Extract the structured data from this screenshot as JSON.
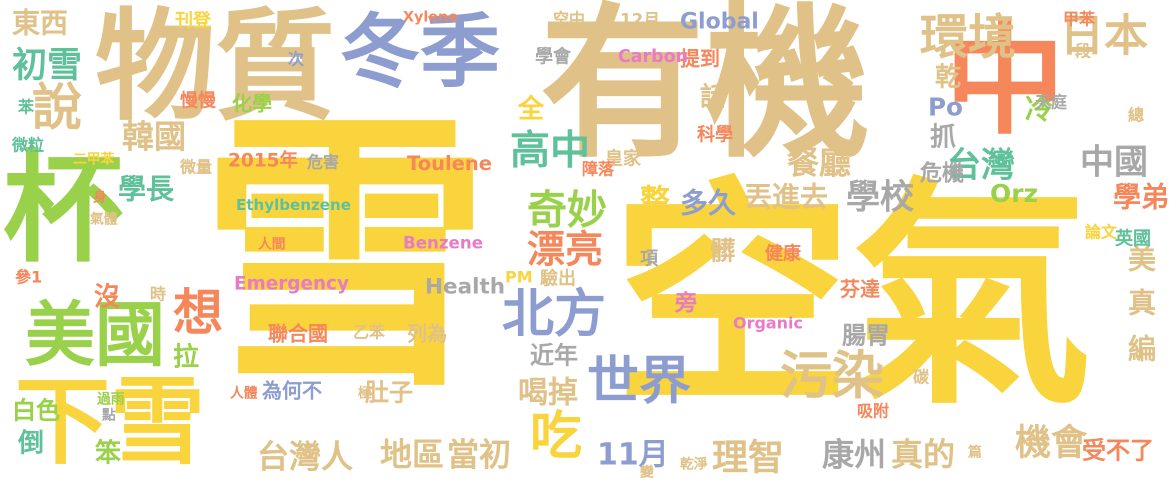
{
  "palette": {
    "gray": "#a8a8a8",
    "yellow": "#f9d43c",
    "tan": "#e0c187",
    "green": "#9ad14a",
    "blue": "#8e9dd0",
    "orange": "#f5875b",
    "teal": "#5fc19a",
    "pink": "#e77bc6"
  },
  "words": [
    {
      "text": "雪",
      "color": "yellow"
    },
    {
      "text": "空氣",
      "color": "yellow"
    },
    {
      "text": "有機",
      "color": "tan"
    },
    {
      "text": "中",
      "color": "orange"
    },
    {
      "text": "物質",
      "color": "tan"
    },
    {
      "text": "冬季",
      "color": "blue"
    },
    {
      "text": "杯",
      "color": "green"
    },
    {
      "text": "下雪",
      "color": "yellow"
    },
    {
      "text": "美國",
      "color": "green"
    },
    {
      "text": "想",
      "color": "orange"
    },
    {
      "text": "北方",
      "color": "blue"
    },
    {
      "text": "世界",
      "color": "blue"
    },
    {
      "text": "污染",
      "color": "tan"
    },
    {
      "text": "環境",
      "color": "tan"
    },
    {
      "text": "日本",
      "color": "tan"
    },
    {
      "text": "說",
      "color": "tan"
    },
    {
      "text": "東西",
      "color": "tan"
    },
    {
      "text": "初雪",
      "color": "teal"
    },
    {
      "text": "韓國",
      "color": "tan"
    },
    {
      "text": "高中",
      "color": "teal"
    },
    {
      "text": "奇妙",
      "color": "green"
    },
    {
      "text": "漂亮",
      "color": "orange"
    },
    {
      "text": "學校",
      "color": "gray"
    },
    {
      "text": "台灣",
      "color": "teal"
    },
    {
      "text": "中國",
      "color": "gray"
    },
    {
      "text": "Po",
      "color": "blue"
    },
    {
      "text": "吃",
      "color": "yellow"
    },
    {
      "text": "餐廳",
      "color": "tan"
    },
    {
      "text": "機會",
      "color": "tan"
    },
    {
      "text": "理智",
      "color": "tan"
    },
    {
      "text": "康州",
      "color": "gray"
    },
    {
      "text": "真的",
      "color": "tan"
    },
    {
      "text": "台灣人",
      "color": "tan"
    },
    {
      "text": "地區",
      "color": "tan"
    },
    {
      "text": "當初",
      "color": "tan"
    },
    {
      "text": "11月",
      "color": "blue"
    },
    {
      "text": "喝掉",
      "color": "tan"
    },
    {
      "text": "學長",
      "color": "teal"
    },
    {
      "text": "整",
      "color": "yellow"
    },
    {
      "text": "多久",
      "color": "blue"
    },
    {
      "text": "丟進去",
      "color": "tan"
    },
    {
      "text": "學弟",
      "color": "orange"
    },
    {
      "text": "Orz",
      "color": "green"
    },
    {
      "text": "冷",
      "color": "green"
    },
    {
      "text": "乾",
      "color": "tan"
    },
    {
      "text": "抓",
      "color": "gray"
    },
    {
      "text": "危機",
      "color": "gray"
    },
    {
      "text": "全",
      "color": "yellow"
    },
    {
      "text": "話",
      "color": "tan"
    },
    {
      "text": "芬達",
      "color": "orange"
    },
    {
      "text": "美",
      "color": "tan"
    },
    {
      "text": "真",
      "color": "tan"
    },
    {
      "text": "編",
      "color": "tan"
    },
    {
      "text": "腸胃",
      "color": "gray"
    },
    {
      "text": "近年",
      "color": "gray"
    },
    {
      "text": "受不了",
      "color": "orange"
    },
    {
      "text": "倒",
      "color": "teal"
    },
    {
      "text": "笨",
      "color": "green"
    },
    {
      "text": "拉",
      "color": "green"
    },
    {
      "text": "沒",
      "color": "orange"
    },
    {
      "text": "白色",
      "color": "green"
    },
    {
      "text": "Global",
      "color": "blue"
    },
    {
      "text": "12月",
      "color": "tan"
    },
    {
      "text": "學會",
      "color": "gray"
    },
    {
      "text": "提到",
      "color": "orange"
    },
    {
      "text": "Carbon",
      "color": "pink"
    },
    {
      "text": "Xylene",
      "color": "orange"
    },
    {
      "text": "空中",
      "color": "tan"
    },
    {
      "text": "甲苯",
      "color": "orange"
    },
    {
      "text": "段",
      "color": "tan"
    },
    {
      "text": "總",
      "color": "tan"
    },
    {
      "text": "刊登",
      "color": "yellow"
    },
    {
      "text": "次",
      "color": "blue"
    },
    {
      "text": "苯",
      "color": "teal"
    },
    {
      "text": "微粒",
      "color": "teal"
    },
    {
      "text": "二甲苯",
      "color": "yellow"
    },
    {
      "text": "慢慢",
      "color": "orange"
    },
    {
      "text": "化學",
      "color": "green"
    },
    {
      "text": "天庭",
      "color": "gray"
    },
    {
      "text": "科學",
      "color": "orange"
    },
    {
      "text": "皇家",
      "color": "tan"
    },
    {
      "text": "障落",
      "color": "orange"
    },
    {
      "text": "微量",
      "color": "tan"
    },
    {
      "text": "2015年",
      "color": "orange"
    },
    {
      "text": "危害",
      "color": "gray"
    },
    {
      "text": "Toulene",
      "color": "orange"
    },
    {
      "text": "身",
      "color": "orange"
    },
    {
      "text": "氣體",
      "color": "tan"
    },
    {
      "text": "Ethylbenzene",
      "color": "teal"
    },
    {
      "text": "人間",
      "color": "orange"
    },
    {
      "text": "Benzene",
      "color": "pink"
    },
    {
      "text": "論文",
      "color": "yellow"
    },
    {
      "text": "英國",
      "color": "teal"
    },
    {
      "text": "參1",
      "color": "orange"
    },
    {
      "text": "時",
      "color": "tan"
    },
    {
      "text": "PM",
      "color": "yellow"
    },
    {
      "text": "驗出",
      "color": "tan"
    },
    {
      "text": "項",
      "color": "gray"
    },
    {
      "text": "髒",
      "color": "tan"
    },
    {
      "text": "健康",
      "color": "orange"
    },
    {
      "text": "Emergency",
      "color": "pink"
    },
    {
      "text": "Health",
      "color": "gray"
    },
    {
      "text": "旁",
      "color": "pink"
    },
    {
      "text": "Organic",
      "color": "pink"
    },
    {
      "text": "聯合國",
      "color": "orange"
    },
    {
      "text": "乙苯",
      "color": "tan"
    },
    {
      "text": "列為",
      "color": "tan"
    },
    {
      "text": "為何不",
      "color": "blue"
    },
    {
      "text": "肚子",
      "color": "tan"
    },
    {
      "text": "人體",
      "color": "orange"
    },
    {
      "text": "極",
      "color": "tan"
    },
    {
      "text": "碳",
      "color": "tan"
    },
    {
      "text": "吸附",
      "color": "orange"
    },
    {
      "text": "過雨",
      "color": "green"
    },
    {
      "text": "點",
      "color": "gray"
    },
    {
      "text": "篇",
      "color": "tan"
    },
    {
      "text": "乾淨",
      "color": "tan"
    },
    {
      "text": "變",
      "color": "tan"
    }
  ]
}
